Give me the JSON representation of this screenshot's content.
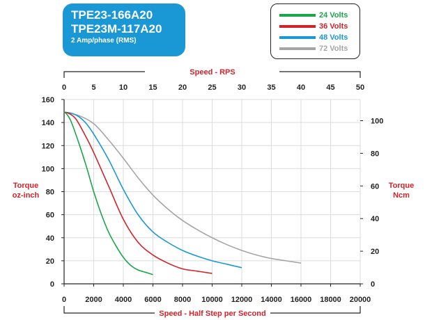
{
  "title": {
    "line1": "TPE23-166A20",
    "line2": "TPE23M-117A20",
    "subtitle": "2 Amp/phase (RMS)"
  },
  "colors": {
    "title_bg": "#1a98d5",
    "axis_label": "#d2232a",
    "axis": "#222222",
    "grid": "#dcdcdc"
  },
  "chart_data": {
    "type": "line",
    "grid": true,
    "legend_position": "top-right",
    "x_bottom": {
      "label": "Speed - Half Step per Second",
      "range": [
        0,
        20000
      ],
      "ticks": [
        0,
        2000,
        4000,
        6000,
        8000,
        10000,
        12000,
        14000,
        16000,
        18000,
        20000
      ]
    },
    "x_top": {
      "label": "Speed - RPS",
      "range": [
        0,
        50
      ],
      "ticks": [
        0,
        5,
        10,
        15,
        20,
        25,
        30,
        35,
        40,
        45,
        50
      ]
    },
    "y_left": {
      "label": [
        "Torque",
        "oz-inch"
      ],
      "range": [
        0,
        160
      ],
      "ticks": [
        0,
        20,
        40,
        60,
        80,
        100,
        120,
        140,
        160
      ]
    },
    "y_right": {
      "label": [
        "Torque",
        "Ncm"
      ],
      "range": [
        0,
        113
      ],
      "ticks": [
        0,
        20,
        40,
        60,
        80,
        100
      ]
    },
    "series": [
      {
        "name": "24 Volts",
        "color": "#1aa64a",
        "x": [
          0,
          200,
          500,
          1000,
          1500,
          2000,
          2500,
          3000,
          3500,
          4000,
          4500,
          5000,
          5500,
          6000
        ],
        "y": [
          149,
          147,
          140,
          122,
          102,
          80,
          61,
          45,
          33,
          23,
          16,
          12,
          10,
          8
        ]
      },
      {
        "name": "36 Volts",
        "color": "#d2232a",
        "x": [
          0,
          300,
          800,
          1500,
          2000,
          3000,
          4000,
          5000,
          6000,
          7000,
          8000,
          9000,
          10000
        ],
        "y": [
          149,
          148,
          143,
          127,
          114,
          85,
          56,
          36,
          25,
          18,
          13,
          11,
          9
        ]
      },
      {
        "name": "48 Volts",
        "color": "#1a98d5",
        "x": [
          0,
          500,
          1000,
          1500,
          2000,
          3000,
          4000,
          5000,
          6000,
          7000,
          8000,
          9000,
          10000,
          11000,
          12000
        ],
        "y": [
          149,
          148,
          145,
          139,
          130,
          108,
          82,
          60,
          45,
          36,
          29,
          24,
          20,
          17,
          14
        ]
      },
      {
        "name": "72 Volts",
        "color": "#a5a5a5",
        "x": [
          0,
          1000,
          2000,
          3000,
          4000,
          5000,
          6000,
          7000,
          8000,
          9000,
          10000,
          11000,
          12000,
          13000,
          14000,
          15000,
          16000
        ],
        "y": [
          149,
          146,
          139,
          125,
          109,
          92,
          77,
          65,
          55,
          47,
          40,
          34,
          29,
          25,
          22,
          20,
          18
        ]
      }
    ]
  }
}
